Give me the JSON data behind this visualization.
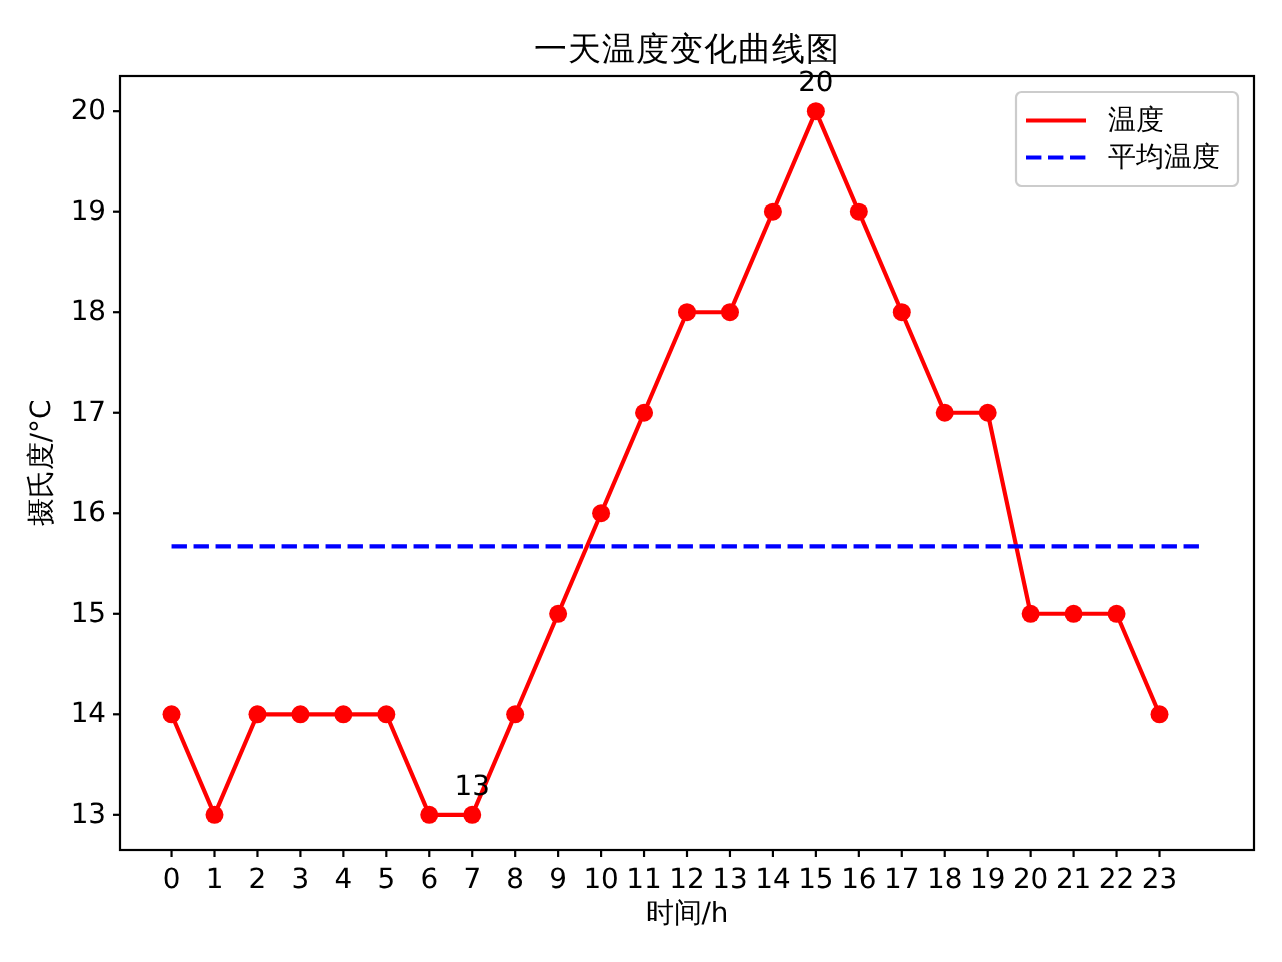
{
  "chart_data": {
    "type": "line",
    "title": "一天温度变化曲线图",
    "xlabel": "时间/h",
    "ylabel": "摄氏度/°C",
    "x": [
      0,
      1,
      2,
      3,
      4,
      5,
      6,
      7,
      8,
      9,
      10,
      11,
      12,
      13,
      14,
      15,
      16,
      17,
      18,
      19,
      20,
      21,
      22,
      23
    ],
    "series": [
      {
        "name": "温度",
        "color": "#ff0000",
        "marker": "circle",
        "line_style": "solid",
        "values": [
          14,
          13,
          14,
          14,
          14,
          14,
          13,
          13,
          14,
          15,
          16,
          17,
          18,
          18,
          19,
          20,
          19,
          18,
          17,
          17,
          15,
          15,
          15,
          14
        ]
      },
      {
        "name": "平均温度",
        "color": "#0000ff",
        "marker": "none",
        "line_style": "dashed",
        "x": [
          0,
          24
        ],
        "values": [
          15.67,
          15.67
        ]
      }
    ],
    "xlim": [
      -1.2,
      25.2
    ],
    "ylim": [
      12.65,
      20.35
    ],
    "xticks": [
      0,
      1,
      2,
      3,
      4,
      5,
      6,
      7,
      8,
      9,
      10,
      11,
      12,
      13,
      14,
      15,
      16,
      17,
      18,
      19,
      20,
      21,
      22,
      23
    ],
    "yticks": [
      13,
      14,
      15,
      16,
      17,
      18,
      19,
      20
    ],
    "annotations": [
      {
        "text": "20",
        "x": 15,
        "y": 20
      },
      {
        "text": "13",
        "x": 7,
        "y": 13
      }
    ],
    "legend": "top right"
  }
}
